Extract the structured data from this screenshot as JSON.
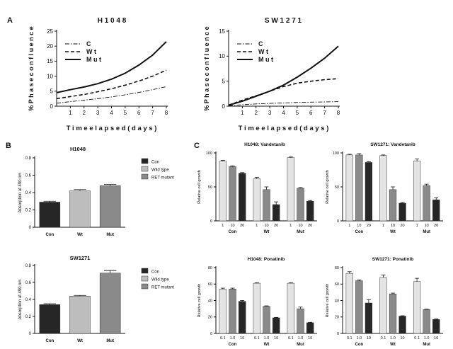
{
  "panel_letters": [
    "A",
    "B",
    "C"
  ],
  "chart_data": [
    {
      "id": "A1",
      "panel": "A",
      "type": "line",
      "title": "H1048",
      "xlabel": "Time elapsed (days)",
      "ylabel": "% Phase confluence",
      "xlim": [
        0,
        8
      ],
      "ylim": [
        0,
        25
      ],
      "x_ticks": [
        1,
        2,
        3,
        4,
        5,
        6,
        7,
        8
      ],
      "y_ticks": [
        0,
        5,
        10,
        15,
        20,
        25
      ],
      "legend": {
        "placement": "top-left",
        "entries": [
          "C",
          "Wt",
          "Mut"
        ]
      },
      "series": [
        {
          "name": "C",
          "style": "dash-dot",
          "x": [
            0,
            1,
            2,
            3,
            4,
            5,
            6,
            7,
            8
          ],
          "y": [
            1.0,
            1.5,
            2.0,
            2.5,
            3.1,
            3.8,
            4.6,
            5.5,
            6.5
          ]
        },
        {
          "name": "Wt",
          "style": "dashed",
          "x": [
            0,
            1,
            2,
            3,
            4,
            5,
            6,
            7,
            8
          ],
          "y": [
            2.5,
            3.2,
            3.9,
            4.8,
            5.8,
            7.0,
            8.4,
            10.0,
            12.0
          ]
        },
        {
          "name": "Mut",
          "style": "solid",
          "x": [
            0,
            1,
            2,
            3,
            4,
            5,
            6,
            7,
            8
          ],
          "y": [
            4.5,
            5.5,
            6.4,
            7.5,
            9.0,
            11.0,
            13.7,
            17.0,
            21.5
          ]
        }
      ]
    },
    {
      "id": "A2",
      "panel": "A",
      "type": "line",
      "title": "SW1271",
      "xlabel": "Time elapsed (days)",
      "ylabel": "% Phase confluence",
      "xlim": [
        0,
        8
      ],
      "ylim": [
        0,
        15
      ],
      "x_ticks": [
        1,
        2,
        3,
        4,
        5,
        6,
        7,
        8
      ],
      "y_ticks": [
        0,
        5,
        10,
        15
      ],
      "legend": {
        "placement": "top-left",
        "entries": [
          "C",
          "Wt",
          "Mut"
        ]
      },
      "series": [
        {
          "name": "C",
          "style": "dash-dot",
          "x": [
            0,
            1,
            2,
            3,
            4,
            5,
            6,
            7,
            8
          ],
          "y": [
            0.1,
            0.3,
            0.45,
            0.55,
            0.65,
            0.75,
            0.8,
            0.85,
            0.9
          ]
        },
        {
          "name": "Wt",
          "style": "dashed",
          "x": [
            0,
            1,
            2,
            3,
            4,
            5,
            6,
            7,
            8
          ],
          "y": [
            0.2,
            1.2,
            2.1,
            3.0,
            3.9,
            4.6,
            5.0,
            5.3,
            5.5
          ]
        },
        {
          "name": "Mut",
          "style": "solid",
          "x": [
            0,
            1,
            2,
            3,
            4,
            5,
            6,
            7,
            8
          ],
          "y": [
            0.2,
            1.0,
            2.0,
            3.0,
            4.2,
            5.8,
            7.6,
            9.6,
            12.0
          ]
        }
      ]
    },
    {
      "id": "B1",
      "panel": "B",
      "type": "bar",
      "title": "H1048",
      "xlabel": "",
      "ylabel": "Absorption at 490 nm",
      "ylim": [
        0,
        0.8
      ],
      "y_ticks": [
        0,
        0.2,
        0.4,
        0.6,
        0.8
      ],
      "categories": [
        "Con",
        "Wt",
        "Mut"
      ],
      "values": [
        0.29,
        0.42,
        0.48
      ],
      "errors": [
        0.01,
        0.015,
        0.015
      ],
      "bar_colors": [
        "#262626",
        "#bdbdbd",
        "#8a8a8a"
      ],
      "legend": {
        "placement": "right",
        "entries": [
          {
            "label": "Con",
            "color": "#262626"
          },
          {
            "label": "Wild type",
            "color": "#bdbdbd"
          },
          {
            "label": "RET mutant",
            "color": "#8a8a8a"
          }
        ]
      }
    },
    {
      "id": "B2",
      "panel": "B",
      "type": "bar",
      "title": "SW1271",
      "xlabel": "",
      "ylabel": "Absorption at 490 nm",
      "ylim": [
        0,
        0.8
      ],
      "y_ticks": [
        0,
        0.2,
        0.4,
        0.6,
        0.8
      ],
      "categories": [
        "Con",
        "Wt",
        "Mut"
      ],
      "values": [
        0.34,
        0.44,
        0.71
      ],
      "errors": [
        0.01,
        0.008,
        0.03
      ],
      "bar_colors": [
        "#262626",
        "#bdbdbd",
        "#8a8a8a"
      ],
      "legend": {
        "placement": "right",
        "entries": [
          {
            "label": "Con",
            "color": "#262626"
          },
          {
            "label": "Wild type",
            "color": "#bdbdbd"
          },
          {
            "label": "RET mutant",
            "color": "#8a8a8a"
          }
        ]
      }
    },
    {
      "id": "C1",
      "panel": "C",
      "type": "bar",
      "title": "H1048: Vandetanib",
      "xlabel": "",
      "ylabel": "Relative cell growth",
      "ylim": [
        0,
        100
      ],
      "y_ticks": [
        0,
        50,
        100
      ],
      "groups": [
        "Con",
        "Wt",
        "Mut"
      ],
      "tick_labels": [
        "1",
        "10",
        "20",
        "1",
        "10",
        "20",
        "1",
        "10",
        "20"
      ],
      "values": [
        88,
        80,
        70,
        62,
        46,
        24,
        93,
        48,
        29
      ],
      "errors": [
        1,
        1,
        1,
        2,
        4,
        4,
        1,
        1,
        1
      ],
      "bar_colors": [
        "#e4e4e4",
        "#8a8a8a",
        "#262626",
        "#e4e4e4",
        "#8a8a8a",
        "#262626",
        "#e4e4e4",
        "#8a8a8a",
        "#262626"
      ]
    },
    {
      "id": "C2",
      "panel": "C",
      "type": "bar",
      "title": "SW1271: Vandetanib",
      "xlabel": "",
      "ylabel": "Relative cell growth",
      "ylim": [
        0,
        100
      ],
      "y_ticks": [
        0,
        50,
        100
      ],
      "groups": [
        "Con",
        "Wt",
        "Mut"
      ],
      "tick_labels": [
        "1",
        "10",
        "20",
        "1",
        "10",
        "20",
        "1",
        "10",
        "20"
      ],
      "values": [
        97,
        97,
        86,
        96,
        46,
        26,
        88,
        52,
        31
      ],
      "errors": [
        1,
        2,
        1,
        1,
        4,
        1,
        3,
        2,
        3
      ],
      "bar_colors": [
        "#e4e4e4",
        "#8a8a8a",
        "#262626",
        "#e4e4e4",
        "#8a8a8a",
        "#262626",
        "#e4e4e4",
        "#8a8a8a",
        "#262626"
      ]
    },
    {
      "id": "C3",
      "panel": "C",
      "type": "bar",
      "title": "H1048: Ponatinib",
      "xlabel": "",
      "ylabel": "Relative cell growth",
      "ylim": [
        0,
        80
      ],
      "y_ticks": [
        0,
        20,
        40,
        60,
        80
      ],
      "groups": [
        "Con",
        "Wt",
        "Mut"
      ],
      "tick_labels": [
        "0.1",
        "1.0",
        "10",
        "0.1",
        "1.0",
        "10",
        "0.1",
        "1.0",
        "10"
      ],
      "values": [
        54,
        54,
        39,
        61,
        33,
        19,
        61,
        30,
        13
      ],
      "errors": [
        1,
        1,
        1,
        0.5,
        0.5,
        0.5,
        0.5,
        2,
        0.5
      ],
      "bar_colors": [
        "#e4e4e4",
        "#8a8a8a",
        "#262626",
        "#e4e4e4",
        "#8a8a8a",
        "#262626",
        "#e4e4e4",
        "#8a8a8a",
        "#262626"
      ]
    },
    {
      "id": "C4",
      "panel": "C",
      "type": "bar",
      "title": "SW1271: Ponatinib",
      "xlabel": "",
      "ylabel": "Relative cell growth",
      "ylim": [
        0,
        80
      ],
      "y_ticks": [
        0,
        20,
        40,
        60,
        80
      ],
      "groups": [
        "Con",
        "Wt",
        "Mut"
      ],
      "tick_labels": [
        "0.1",
        "1.0",
        "10",
        "0.1",
        "1.0",
        "10",
        "0.1",
        "1.0",
        "10"
      ],
      "values": [
        73,
        64,
        37,
        68,
        48,
        21,
        63,
        29,
        17
      ],
      "errors": [
        2,
        1,
        4,
        3,
        1,
        0.5,
        4,
        0.5,
        0.5
      ],
      "bar_colors": [
        "#e4e4e4",
        "#8a8a8a",
        "#262626",
        "#e4e4e4",
        "#8a8a8a",
        "#262626",
        "#e4e4e4",
        "#8a8a8a",
        "#262626"
      ]
    }
  ]
}
